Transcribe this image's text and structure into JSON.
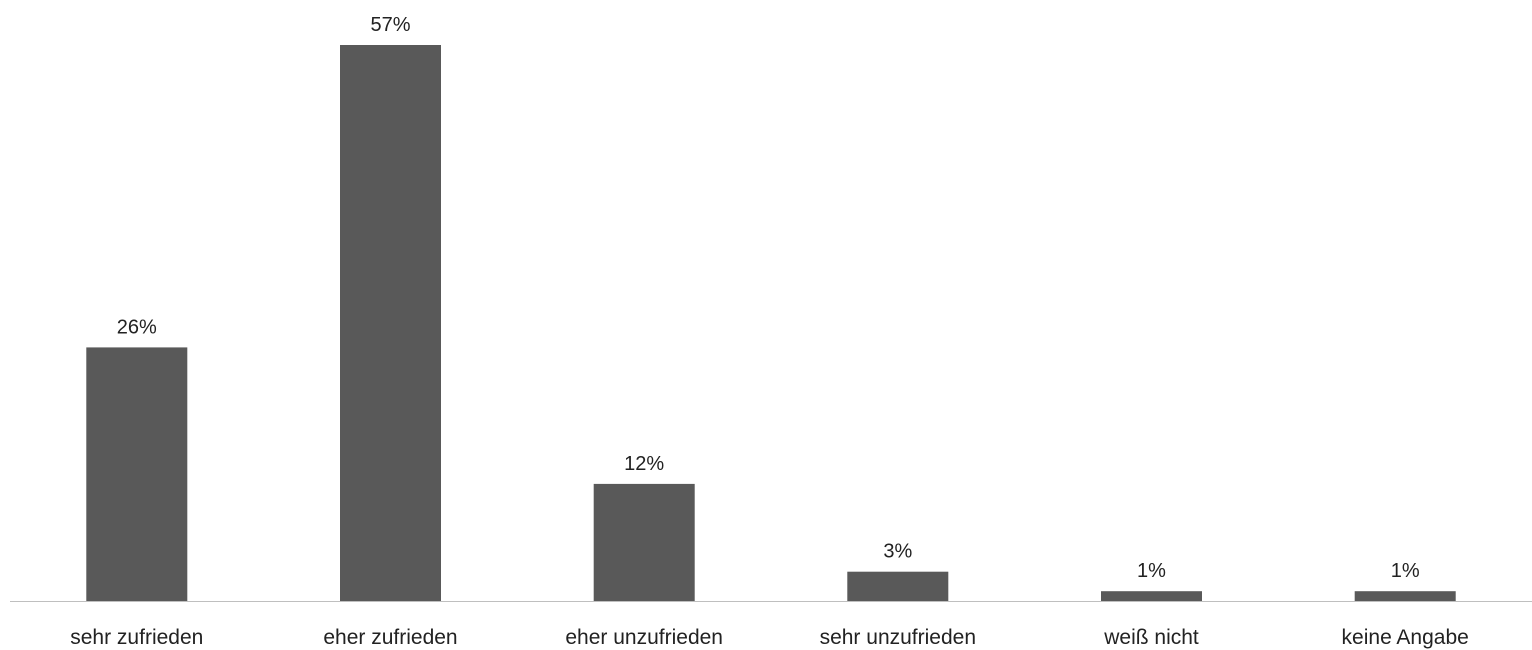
{
  "chart_data": {
    "type": "bar",
    "title": "",
    "xlabel": "",
    "ylabel": "",
    "categories": [
      "sehr zufrieden",
      "eher zufrieden",
      "eher unzufrieden",
      "sehr unzufrieden",
      "weiß nicht",
      "keine Angabe"
    ],
    "values": [
      26,
      57,
      12,
      3,
      1,
      1
    ],
    "data_labels": [
      "26%",
      "57%",
      "12%",
      "3%",
      "1%",
      "1%"
    ],
    "unit": "%",
    "ylim": [
      0,
      57
    ],
    "grid": false,
    "legend": "none",
    "colors": {
      "bar": "#595959",
      "axis": "#bfbfbf",
      "text": "#222222"
    }
  }
}
